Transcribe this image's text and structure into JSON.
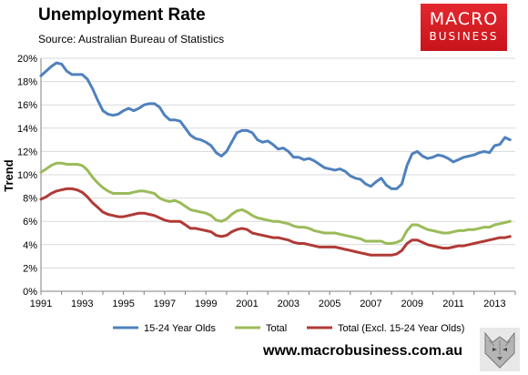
{
  "header": {
    "title": "Unemployment Rate",
    "source": "Source: Australian Bureau of Statistics",
    "logo_line1": "MACRO",
    "logo_line2": "BUSINESS"
  },
  "footer": {
    "url": "www.macrobusiness.com.au"
  },
  "colors": {
    "youth": "#4f81bd",
    "total": "#9bbb59",
    "excl": "#b03a36",
    "grid": "#d9d9d9",
    "brand": "#d21e25"
  },
  "chart_data": {
    "type": "line",
    "title": "Unemployment Rate",
    "xlabel": "",
    "ylabel": "Trend",
    "xlim": [
      1991,
      2014
    ],
    "ylim": [
      0,
      20
    ],
    "x_ticks": [
      "1991",
      "1993",
      "1995",
      "1997",
      "1999",
      "2001",
      "2003",
      "2005",
      "2007",
      "2009",
      "2011",
      "2013"
    ],
    "y_ticks": [
      "0%",
      "2%",
      "4%",
      "6%",
      "8%",
      "10%",
      "12%",
      "14%",
      "16%",
      "18%",
      "20%"
    ],
    "grid": "horizontal",
    "legend_position": "bottom",
    "series": [
      {
        "name": "15-24 Year Olds",
        "points": [
          [
            1991.0,
            18.5
          ],
          [
            1991.25,
            18.9
          ],
          [
            1991.5,
            19.3
          ],
          [
            1991.75,
            19.6
          ],
          [
            1992.0,
            19.5
          ],
          [
            1992.25,
            18.9
          ],
          [
            1992.5,
            18.6
          ],
          [
            1992.75,
            18.6
          ],
          [
            1993.0,
            18.6
          ],
          [
            1993.25,
            18.2
          ],
          [
            1993.5,
            17.4
          ],
          [
            1993.75,
            16.4
          ],
          [
            1994.0,
            15.5
          ],
          [
            1994.25,
            15.2
          ],
          [
            1994.5,
            15.1
          ],
          [
            1994.75,
            15.2
          ],
          [
            1995.0,
            15.5
          ],
          [
            1995.25,
            15.7
          ],
          [
            1995.5,
            15.5
          ],
          [
            1995.75,
            15.7
          ],
          [
            1996.0,
            16.0
          ],
          [
            1996.25,
            16.1
          ],
          [
            1996.5,
            16.1
          ],
          [
            1996.75,
            15.8
          ],
          [
            1997.0,
            15.1
          ],
          [
            1997.25,
            14.7
          ],
          [
            1997.5,
            14.7
          ],
          [
            1997.75,
            14.6
          ],
          [
            1998.0,
            14.0
          ],
          [
            1998.25,
            13.4
          ],
          [
            1998.5,
            13.1
          ],
          [
            1998.75,
            13.0
          ],
          [
            1999.0,
            12.8
          ],
          [
            1999.25,
            12.5
          ],
          [
            1999.5,
            11.9
          ],
          [
            1999.75,
            11.6
          ],
          [
            2000.0,
            12.0
          ],
          [
            2000.25,
            12.8
          ],
          [
            2000.5,
            13.6
          ],
          [
            2000.75,
            13.8
          ],
          [
            2001.0,
            13.8
          ],
          [
            2001.25,
            13.6
          ],
          [
            2001.5,
            13.0
          ],
          [
            2001.75,
            12.8
          ],
          [
            2002.0,
            12.9
          ],
          [
            2002.25,
            12.6
          ],
          [
            2002.5,
            12.2
          ],
          [
            2002.75,
            12.3
          ],
          [
            2003.0,
            12.0
          ],
          [
            2003.25,
            11.5
          ],
          [
            2003.5,
            11.5
          ],
          [
            2003.75,
            11.3
          ],
          [
            2004.0,
            11.4
          ],
          [
            2004.25,
            11.2
          ],
          [
            2004.5,
            10.9
          ],
          [
            2004.75,
            10.6
          ],
          [
            2005.0,
            10.5
          ],
          [
            2005.25,
            10.4
          ],
          [
            2005.5,
            10.5
          ],
          [
            2005.75,
            10.3
          ],
          [
            2006.0,
            9.9
          ],
          [
            2006.25,
            9.7
          ],
          [
            2006.5,
            9.6
          ],
          [
            2006.75,
            9.2
          ],
          [
            2007.0,
            9.0
          ],
          [
            2007.25,
            9.4
          ],
          [
            2007.5,
            9.7
          ],
          [
            2007.75,
            9.1
          ],
          [
            2008.0,
            8.8
          ],
          [
            2008.25,
            8.8
          ],
          [
            2008.5,
            9.2
          ],
          [
            2008.75,
            10.8
          ],
          [
            2009.0,
            11.8
          ],
          [
            2009.25,
            12.0
          ],
          [
            2009.5,
            11.6
          ],
          [
            2009.75,
            11.4
          ],
          [
            2010.0,
            11.5
          ],
          [
            2010.25,
            11.7
          ],
          [
            2010.5,
            11.6
          ],
          [
            2010.75,
            11.4
          ],
          [
            2011.0,
            11.1
          ],
          [
            2011.25,
            11.3
          ],
          [
            2011.5,
            11.5
          ],
          [
            2011.75,
            11.6
          ],
          [
            2012.0,
            11.7
          ],
          [
            2012.25,
            11.9
          ],
          [
            2012.5,
            12.0
          ],
          [
            2012.75,
            11.9
          ],
          [
            2013.0,
            12.5
          ],
          [
            2013.25,
            12.6
          ],
          [
            2013.5,
            13.2
          ],
          [
            2013.75,
            13.0
          ]
        ]
      },
      {
        "name": "Total",
        "points": [
          [
            1991.0,
            10.2
          ],
          [
            1991.25,
            10.5
          ],
          [
            1991.5,
            10.8
          ],
          [
            1991.75,
            11.0
          ],
          [
            1992.0,
            11.0
          ],
          [
            1992.25,
            10.9
          ],
          [
            1992.5,
            10.9
          ],
          [
            1992.75,
            10.9
          ],
          [
            1993.0,
            10.8
          ],
          [
            1993.25,
            10.4
          ],
          [
            1993.5,
            9.8
          ],
          [
            1993.75,
            9.3
          ],
          [
            1994.0,
            8.9
          ],
          [
            1994.25,
            8.6
          ],
          [
            1994.5,
            8.4
          ],
          [
            1994.75,
            8.4
          ],
          [
            1995.0,
            8.4
          ],
          [
            1995.25,
            8.4
          ],
          [
            1995.5,
            8.5
          ],
          [
            1995.75,
            8.6
          ],
          [
            1996.0,
            8.6
          ],
          [
            1996.25,
            8.5
          ],
          [
            1996.5,
            8.4
          ],
          [
            1996.75,
            8.0
          ],
          [
            1997.0,
            7.8
          ],
          [
            1997.25,
            7.7
          ],
          [
            1997.5,
            7.8
          ],
          [
            1997.75,
            7.6
          ],
          [
            1998.0,
            7.3
          ],
          [
            1998.25,
            7.0
          ],
          [
            1998.5,
            6.9
          ],
          [
            1998.75,
            6.8
          ],
          [
            1999.0,
            6.7
          ],
          [
            1999.25,
            6.5
          ],
          [
            1999.5,
            6.1
          ],
          [
            1999.75,
            6.0
          ],
          [
            2000.0,
            6.2
          ],
          [
            2000.25,
            6.6
          ],
          [
            2000.5,
            6.9
          ],
          [
            2000.75,
            7.0
          ],
          [
            2001.0,
            6.8
          ],
          [
            2001.25,
            6.5
          ],
          [
            2001.5,
            6.3
          ],
          [
            2001.75,
            6.2
          ],
          [
            2002.0,
            6.1
          ],
          [
            2002.25,
            6.0
          ],
          [
            2002.5,
            6.0
          ],
          [
            2002.75,
            5.9
          ],
          [
            2003.0,
            5.8
          ],
          [
            2003.25,
            5.6
          ],
          [
            2003.5,
            5.5
          ],
          [
            2003.75,
            5.5
          ],
          [
            2004.0,
            5.4
          ],
          [
            2004.25,
            5.2
          ],
          [
            2004.5,
            5.1
          ],
          [
            2004.75,
            5.0
          ],
          [
            2005.0,
            5.0
          ],
          [
            2005.25,
            5.0
          ],
          [
            2005.5,
            4.9
          ],
          [
            2005.75,
            4.8
          ],
          [
            2006.0,
            4.7
          ],
          [
            2006.25,
            4.6
          ],
          [
            2006.5,
            4.5
          ],
          [
            2006.75,
            4.3
          ],
          [
            2007.0,
            4.3
          ],
          [
            2007.25,
            4.3
          ],
          [
            2007.5,
            4.3
          ],
          [
            2007.75,
            4.1
          ],
          [
            2008.0,
            4.1
          ],
          [
            2008.25,
            4.2
          ],
          [
            2008.5,
            4.4
          ],
          [
            2008.75,
            5.2
          ],
          [
            2009.0,
            5.7
          ],
          [
            2009.25,
            5.7
          ],
          [
            2009.5,
            5.5
          ],
          [
            2009.75,
            5.3
          ],
          [
            2010.0,
            5.2
          ],
          [
            2010.25,
            5.1
          ],
          [
            2010.5,
            5.0
          ],
          [
            2010.75,
            5.0
          ],
          [
            2011.0,
            5.1
          ],
          [
            2011.25,
            5.2
          ],
          [
            2011.5,
            5.2
          ],
          [
            2011.75,
            5.3
          ],
          [
            2012.0,
            5.3
          ],
          [
            2012.25,
            5.4
          ],
          [
            2012.5,
            5.5
          ],
          [
            2012.75,
            5.5
          ],
          [
            2013.0,
            5.7
          ],
          [
            2013.25,
            5.8
          ],
          [
            2013.5,
            5.9
          ],
          [
            2013.75,
            6.0
          ]
        ]
      },
      {
        "name": "Total (Excl. 15-24 Year Olds)",
        "points": [
          [
            1991.0,
            7.9
          ],
          [
            1991.25,
            8.1
          ],
          [
            1991.5,
            8.4
          ],
          [
            1991.75,
            8.6
          ],
          [
            1992.0,
            8.7
          ],
          [
            1992.25,
            8.8
          ],
          [
            1992.5,
            8.8
          ],
          [
            1992.75,
            8.7
          ],
          [
            1993.0,
            8.5
          ],
          [
            1993.25,
            8.1
          ],
          [
            1993.5,
            7.6
          ],
          [
            1993.75,
            7.2
          ],
          [
            1994.0,
            6.8
          ],
          [
            1994.25,
            6.6
          ],
          [
            1994.5,
            6.5
          ],
          [
            1994.75,
            6.4
          ],
          [
            1995.0,
            6.4
          ],
          [
            1995.25,
            6.5
          ],
          [
            1995.5,
            6.6
          ],
          [
            1995.75,
            6.7
          ],
          [
            1996.0,
            6.7
          ],
          [
            1996.25,
            6.6
          ],
          [
            1996.5,
            6.5
          ],
          [
            1996.75,
            6.3
          ],
          [
            1997.0,
            6.1
          ],
          [
            1997.25,
            6.0
          ],
          [
            1997.5,
            6.0
          ],
          [
            1997.75,
            6.0
          ],
          [
            1998.0,
            5.7
          ],
          [
            1998.25,
            5.4
          ],
          [
            1998.5,
            5.4
          ],
          [
            1998.75,
            5.3
          ],
          [
            1999.0,
            5.2
          ],
          [
            1999.25,
            5.1
          ],
          [
            1999.5,
            4.8
          ],
          [
            1999.75,
            4.7
          ],
          [
            2000.0,
            4.8
          ],
          [
            2000.25,
            5.1
          ],
          [
            2000.5,
            5.3
          ],
          [
            2000.75,
            5.4
          ],
          [
            2001.0,
            5.3
          ],
          [
            2001.25,
            5.0
          ],
          [
            2001.5,
            4.9
          ],
          [
            2001.75,
            4.8
          ],
          [
            2002.0,
            4.7
          ],
          [
            2002.25,
            4.6
          ],
          [
            2002.5,
            4.6
          ],
          [
            2002.75,
            4.5
          ],
          [
            2003.0,
            4.4
          ],
          [
            2003.25,
            4.2
          ],
          [
            2003.5,
            4.1
          ],
          [
            2003.75,
            4.1
          ],
          [
            2004.0,
            4.0
          ],
          [
            2004.25,
            3.9
          ],
          [
            2004.5,
            3.8
          ],
          [
            2004.75,
            3.8
          ],
          [
            2005.0,
            3.8
          ],
          [
            2005.25,
            3.8
          ],
          [
            2005.5,
            3.7
          ],
          [
            2005.75,
            3.6
          ],
          [
            2006.0,
            3.5
          ],
          [
            2006.25,
            3.4
          ],
          [
            2006.5,
            3.3
          ],
          [
            2006.75,
            3.2
          ],
          [
            2007.0,
            3.1
          ],
          [
            2007.25,
            3.1
          ],
          [
            2007.5,
            3.1
          ],
          [
            2007.75,
            3.1
          ],
          [
            2008.0,
            3.1
          ],
          [
            2008.25,
            3.2
          ],
          [
            2008.5,
            3.5
          ],
          [
            2008.75,
            4.1
          ],
          [
            2009.0,
            4.4
          ],
          [
            2009.25,
            4.4
          ],
          [
            2009.5,
            4.2
          ],
          [
            2009.75,
            4.0
          ],
          [
            2010.0,
            3.9
          ],
          [
            2010.25,
            3.8
          ],
          [
            2010.5,
            3.7
          ],
          [
            2010.75,
            3.7
          ],
          [
            2011.0,
            3.8
          ],
          [
            2011.25,
            3.9
          ],
          [
            2011.5,
            3.9
          ],
          [
            2011.75,
            4.0
          ],
          [
            2012.0,
            4.1
          ],
          [
            2012.25,
            4.2
          ],
          [
            2012.5,
            4.3
          ],
          [
            2012.75,
            4.4
          ],
          [
            2013.0,
            4.5
          ],
          [
            2013.25,
            4.6
          ],
          [
            2013.5,
            4.6
          ],
          [
            2013.75,
            4.7
          ]
        ]
      }
    ]
  }
}
